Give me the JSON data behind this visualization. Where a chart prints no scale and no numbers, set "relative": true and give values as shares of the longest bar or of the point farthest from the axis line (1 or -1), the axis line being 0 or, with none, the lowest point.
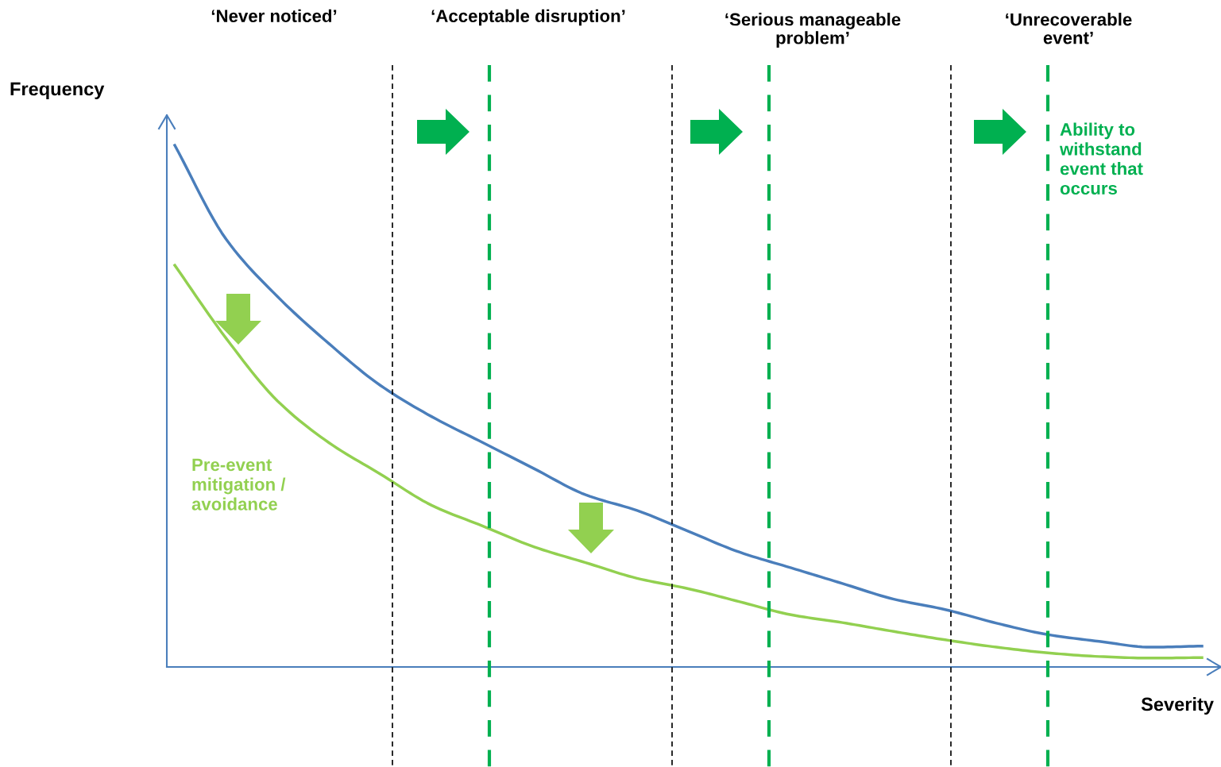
{
  "chart_data": {
    "type": "line",
    "relative": true,
    "xlabel": "Severity",
    "ylabel": "Frequency",
    "categories": [
      null,
      null,
      null,
      null,
      null,
      null,
      null,
      null,
      null,
      null,
      null,
      null,
      null,
      null,
      null,
      null,
      null,
      null,
      null,
      null,
      null
    ],
    "series": [
      {
        "color": "#4a7ebb",
        "values": [
          1,
          0.82,
          0.71,
          0.62,
          0.54,
          0.48,
          0.43,
          0.38,
          0.33,
          0.3,
          0.26,
          0.22,
          0.19,
          0.16,
          0.13,
          0.11,
          0.084,
          0.062,
          0.049,
          0.038,
          0.04
        ]
      },
      {
        "color": "#92d050",
        "values": [
          0.77,
          0.63,
          0.51,
          0.43,
          0.37,
          0.31,
          0.27,
          0.23,
          0.2,
          0.17,
          0.15,
          0.125,
          0.1,
          0.085,
          0.068,
          0.052,
          0.038,
          0.027,
          0.02,
          0.017,
          0.018
        ]
      }
    ],
    "annotations": [
      "‘Never noticed’",
      "‘Acceptable disruption’",
      "‘Serious manageable\nproblem’",
      "‘Unrecoverable\nevent’",
      "Ability to\nwithstand\nevent that\noccurs",
      "Pre-event\nmitigation /\navoidance"
    ],
    "legend": false,
    "line_style": "solid",
    "marker": "none"
  }
}
